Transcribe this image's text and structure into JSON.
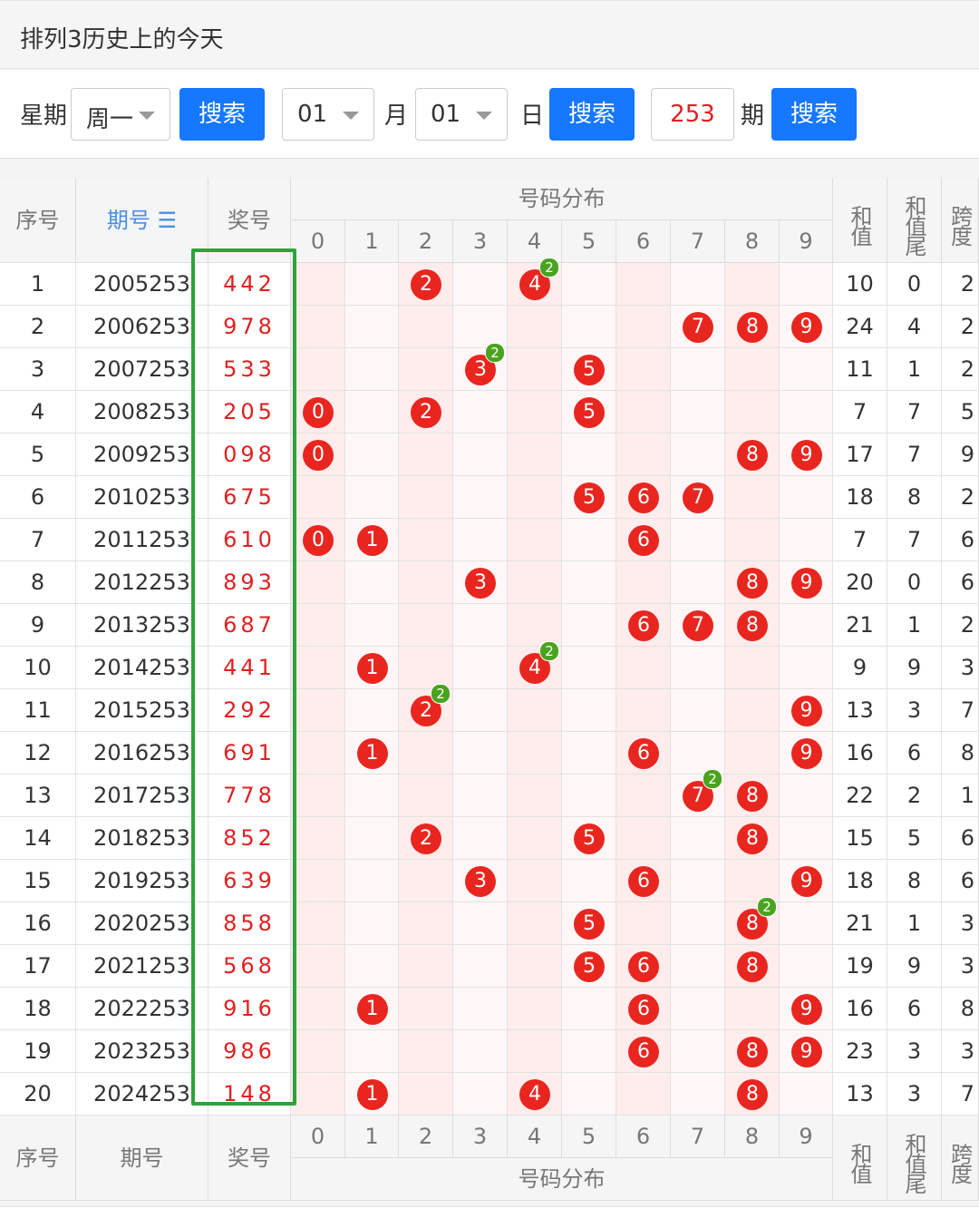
{
  "title": "排列3历史上的今天",
  "search": {
    "week_label": "星期",
    "week_value": "周一",
    "month_value": "01",
    "month_label": "月",
    "day_value": "01",
    "day_label": "日",
    "period_value": "253",
    "period_label": "期",
    "search_label": "搜索"
  },
  "table": {
    "headers": {
      "index": "序号",
      "period": "期号",
      "sort_icon": "☰",
      "prize": "奖号",
      "distribution": "号码分布",
      "sum": "和值",
      "sum_tail": "和值尾",
      "span": "跨度"
    },
    "digits": [
      "0",
      "1",
      "2",
      "3",
      "4",
      "5",
      "6",
      "7",
      "8",
      "9"
    ],
    "rows": [
      {
        "idx": "1",
        "period": "2005253",
        "prize": "442",
        "sum": "10",
        "tail": "0",
        "span": "2"
      },
      {
        "idx": "2",
        "period": "2006253",
        "prize": "978",
        "sum": "24",
        "tail": "4",
        "span": "2"
      },
      {
        "idx": "3",
        "period": "2007253",
        "prize": "533",
        "sum": "11",
        "tail": "1",
        "span": "2"
      },
      {
        "idx": "4",
        "period": "2008253",
        "prize": "205",
        "sum": "7",
        "tail": "7",
        "span": "5"
      },
      {
        "idx": "5",
        "period": "2009253",
        "prize": "098",
        "sum": "17",
        "tail": "7",
        "span": "9"
      },
      {
        "idx": "6",
        "period": "2010253",
        "prize": "675",
        "sum": "18",
        "tail": "8",
        "span": "2"
      },
      {
        "idx": "7",
        "period": "2011253",
        "prize": "610",
        "sum": "7",
        "tail": "7",
        "span": "6"
      },
      {
        "idx": "8",
        "period": "2012253",
        "prize": "893",
        "sum": "20",
        "tail": "0",
        "span": "6"
      },
      {
        "idx": "9",
        "period": "2013253",
        "prize": "687",
        "sum": "21",
        "tail": "1",
        "span": "2"
      },
      {
        "idx": "10",
        "period": "2014253",
        "prize": "441",
        "sum": "9",
        "tail": "9",
        "span": "3"
      },
      {
        "idx": "11",
        "period": "2015253",
        "prize": "292",
        "sum": "13",
        "tail": "3",
        "span": "7"
      },
      {
        "idx": "12",
        "period": "2016253",
        "prize": "691",
        "sum": "16",
        "tail": "6",
        "span": "8"
      },
      {
        "idx": "13",
        "period": "2017253",
        "prize": "778",
        "sum": "22",
        "tail": "2",
        "span": "1"
      },
      {
        "idx": "14",
        "period": "2018253",
        "prize": "852",
        "sum": "15",
        "tail": "5",
        "span": "6"
      },
      {
        "idx": "15",
        "period": "2019253",
        "prize": "639",
        "sum": "18",
        "tail": "8",
        "span": "6"
      },
      {
        "idx": "16",
        "period": "2020253",
        "prize": "858",
        "sum": "21",
        "tail": "1",
        "span": "3"
      },
      {
        "idx": "17",
        "period": "2021253",
        "prize": "568",
        "sum": "19",
        "tail": "9",
        "span": "3"
      },
      {
        "idx": "18",
        "period": "2022253",
        "prize": "916",
        "sum": "16",
        "tail": "6",
        "span": "8"
      },
      {
        "idx": "19",
        "period": "2023253",
        "prize": "986",
        "sum": "23",
        "tail": "3",
        "span": "3"
      },
      {
        "idx": "20",
        "period": "2024253",
        "prize": "148",
        "sum": "13",
        "tail": "3",
        "span": "7"
      }
    ]
  },
  "colors": {
    "accent": "#1677ff",
    "ball": "#e8261f",
    "repeat_badge": "#4aa31e",
    "highlight_box": "#2ea33a",
    "prize_text": "#e02020"
  }
}
